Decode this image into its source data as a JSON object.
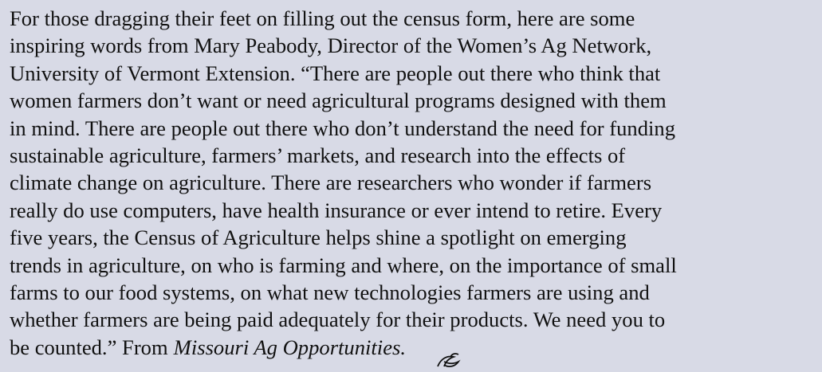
{
  "paragraph": {
    "lines": [
      "For those dragging their feet on filling out the census form, here are some",
      "inspiring words from Mary Peabody, Director of the Women’s Ag Network,",
      "University of Vermont Extension. “There are people out there who think that",
      "women farmers don’t want or need agricultural programs designed with them",
      "in mind. There are people out there who don’t understand the need for funding",
      "sustainable agriculture, farmers’ markets, and research into the effects of",
      "climate change on agriculture. There are researchers who wonder if farmers",
      "really do use computers, have health insurance or ever intend to retire. Every",
      "five years, the Census of Agriculture helps shine a spotlight on emerging",
      "trends in agriculture, on who is farming and where, on the importance of small",
      "farms to our food systems, on what new technologies farmers are using and",
      "whether farmers are being paid adequately for their products. We need you to"
    ],
    "last_line": {
      "text": "be counted.” From",
      "source": "Missouri Ag Opportunities."
    }
  }
}
